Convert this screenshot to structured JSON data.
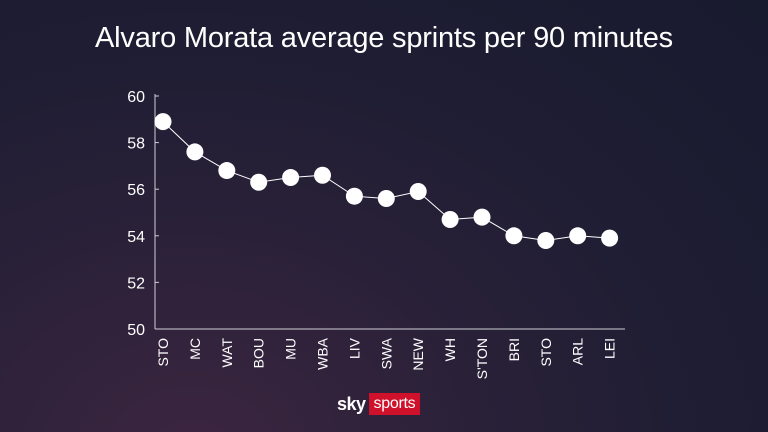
{
  "chart_data": {
    "type": "line",
    "title": "Alvaro Morata average sprints per 90 minutes",
    "xlabel": "",
    "ylabel": "",
    "categories": [
      "STO",
      "MC",
      "WAT",
      "BOU",
      "MU",
      "WBA",
      "LIV",
      "SWA",
      "NEW",
      "WH",
      "S'TON",
      "BRI",
      "STO",
      "ARL",
      "LEI"
    ],
    "values": [
      58.9,
      57.6,
      56.8,
      56.3,
      56.5,
      56.6,
      55.7,
      55.6,
      55.9,
      54.7,
      54.8,
      54.0,
      53.8,
      54.0,
      53.9
    ],
    "ylim": [
      50,
      60
    ],
    "yticks": [
      50,
      52,
      54,
      56,
      58,
      60
    ],
    "grid": false,
    "colors": {
      "line": "#ffffff",
      "marker": "#ffffff",
      "axis": "#cfcfd6"
    }
  },
  "branding": {
    "sky": "sky",
    "sports": "sports"
  }
}
